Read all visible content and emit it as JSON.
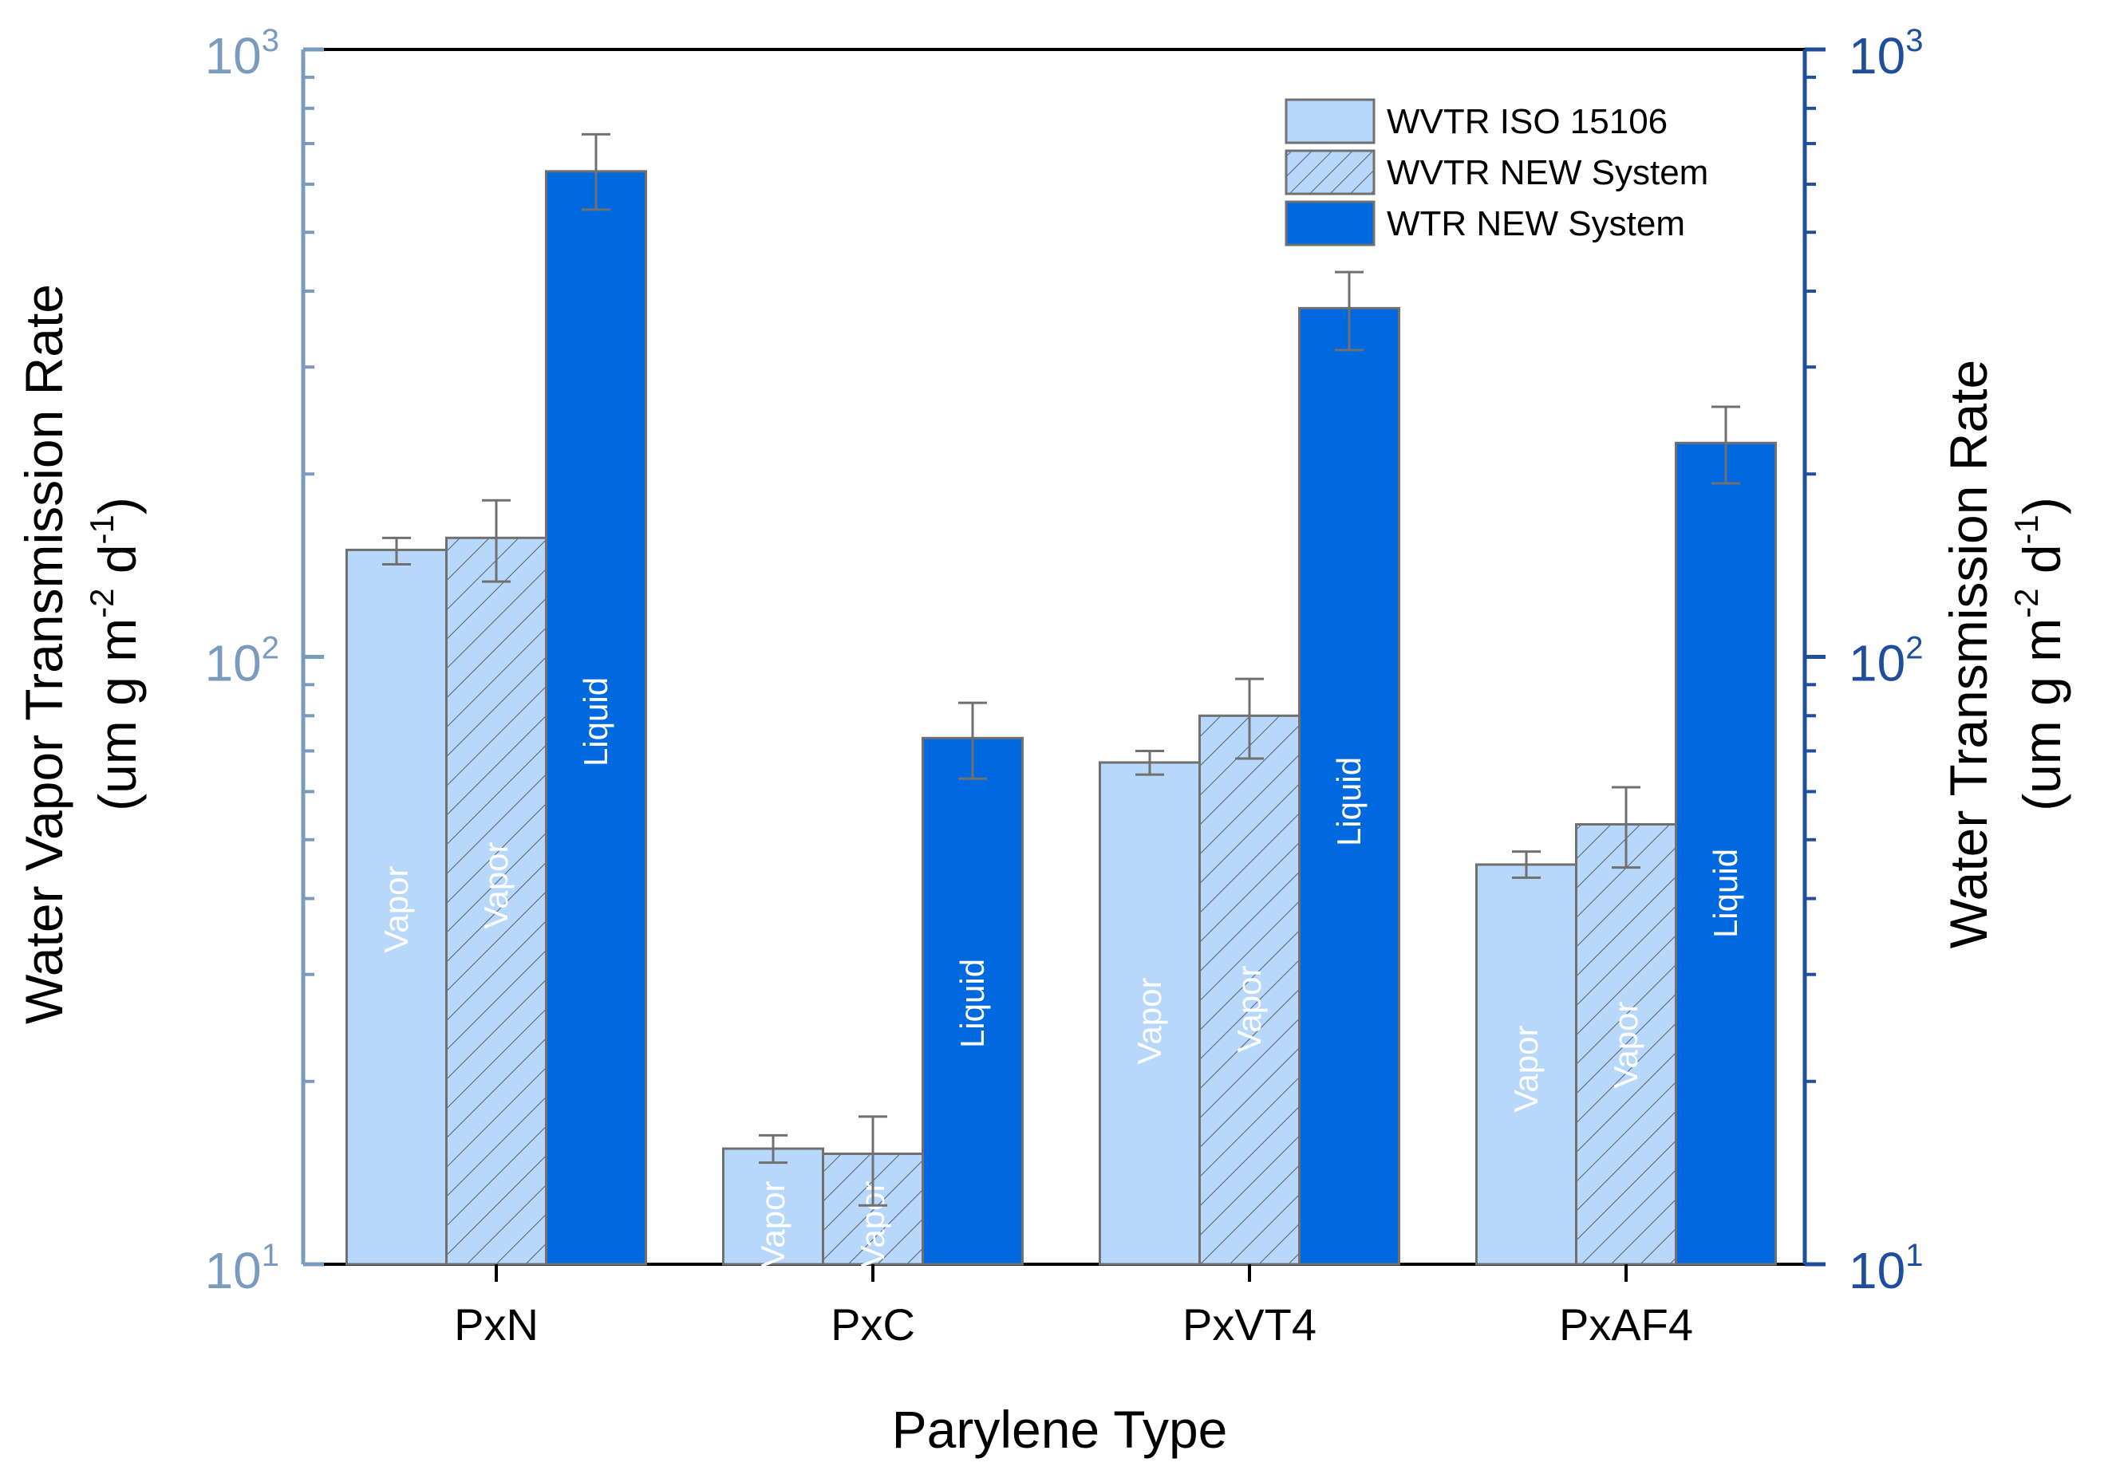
{
  "chart_data": {
    "type": "bar",
    "scale": "log",
    "xlabel": "Parylene Type",
    "ylabel_left": [
      "Water Vapor Transmission Rate",
      "(um g m",
      "-2",
      " d",
      "-1",
      ")"
    ],
    "ylabel_right": [
      "Water Transmission Rate",
      "(um g m",
      "-2",
      " d",
      "-1",
      ")"
    ],
    "ylim": [
      10,
      1000
    ],
    "yticks": [
      {
        "base": "10",
        "exp": "1",
        "value": 10
      },
      {
        "base": "10",
        "exp": "2",
        "value": 100
      },
      {
        "base": "10",
        "exp": "3",
        "value": 1000
      }
    ],
    "categories": [
      "PxN",
      "PxC",
      "PxVT4",
      "PxAF4"
    ],
    "series": [
      {
        "name": "WVTR ISO 15106",
        "pattern": "solid",
        "color": "#b7d8fb",
        "bar_label": "Vapor",
        "values": [
          150,
          15.5,
          67,
          45.5
        ],
        "err_low": [
          142,
          14.7,
          64,
          43.3
        ],
        "err_high": [
          157,
          16.3,
          70,
          47.8
        ]
      },
      {
        "name": "WVTR NEW System",
        "pattern": "hatch",
        "color": "#b7d8fb",
        "bar_label": "Vapor",
        "values": [
          157,
          15.2,
          80,
          53
        ],
        "err_low": [
          133,
          12.5,
          68,
          45
        ],
        "err_high": [
          181,
          17.5,
          92,
          61
        ]
      },
      {
        "name": "WTR NEW System",
        "pattern": "solid",
        "color": "#0169e0",
        "bar_label": "Liquid",
        "values": [
          630,
          73.5,
          375,
          225
        ],
        "err_low": [
          545,
          63,
          320,
          193
        ],
        "err_high": [
          725,
          84,
          430,
          258
        ]
      }
    ],
    "legend_position": "top-right",
    "left_axis_color": "#7a9bbd",
    "right_axis_color": "#1f4e9e"
  }
}
